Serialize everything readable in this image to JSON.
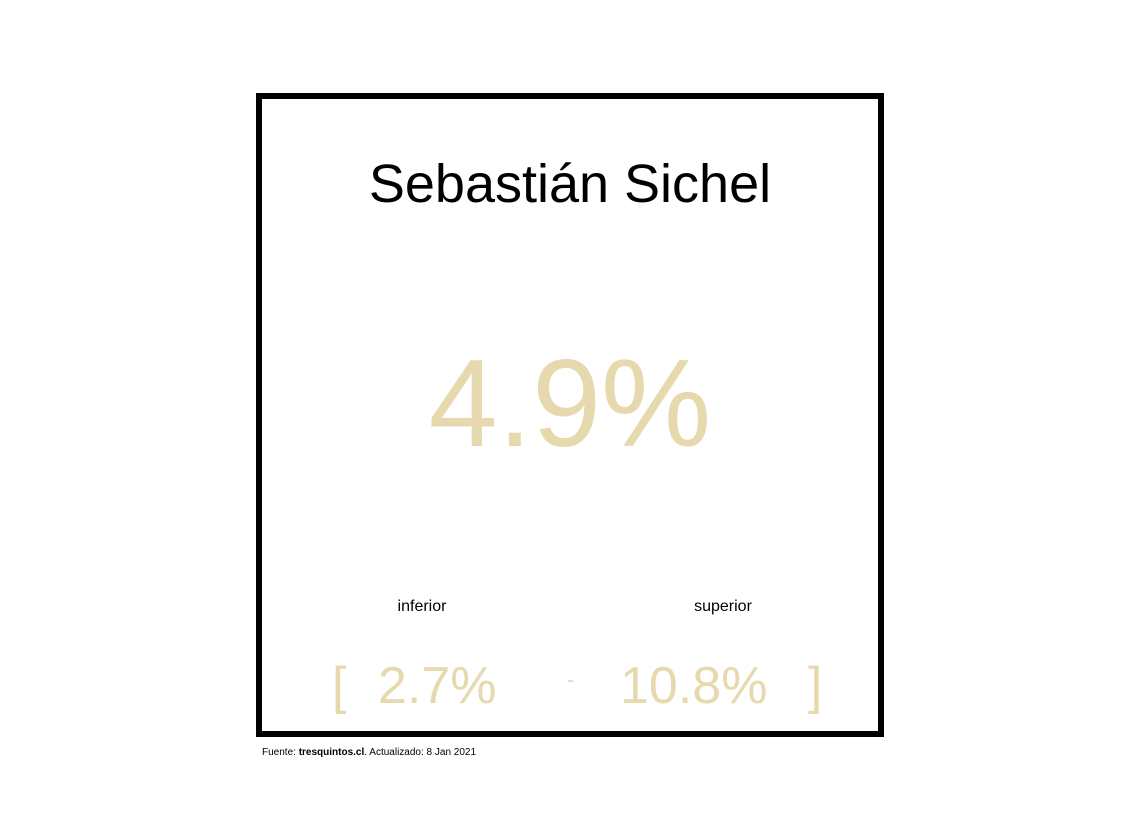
{
  "card": {
    "title": "Sebastián Sichel",
    "value": "4.9%",
    "inferior_label": "inferior",
    "superior_label": "superior",
    "bracket_open": "[",
    "lower_value": "2.7%",
    "dash": "-",
    "upper_value": "10.8%",
    "bracket_close": "]"
  },
  "footer": {
    "prefix": "Fuente: ",
    "source": "tresquintos.cl",
    "suffix": ". Actualizado: 8 Jan 2021"
  },
  "colors": {
    "accent": "#e6d9ae",
    "border": "#000000",
    "text": "#000000"
  }
}
